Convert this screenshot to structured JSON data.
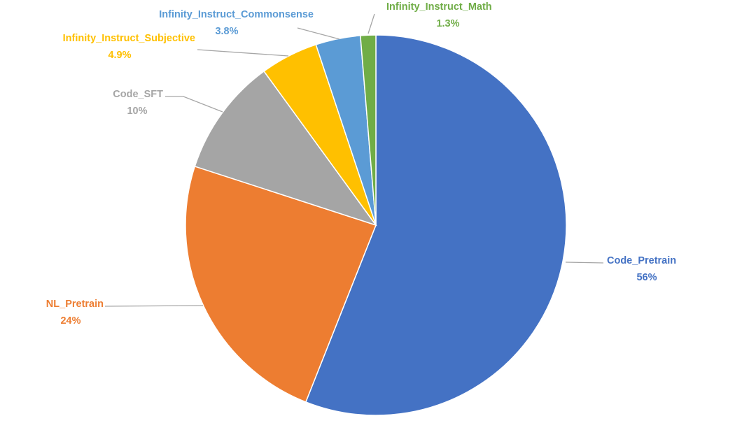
{
  "chart_data": {
    "type": "pie",
    "title": "",
    "start": "12 o'clock, clockwise",
    "legend": "none (data labels with leader lines)",
    "slices": [
      {
        "name": "Code_Pretrain",
        "value": 56,
        "label": "56%",
        "color": "#4472C4"
      },
      {
        "name": "NL_Pretrain",
        "value": 24,
        "label": "24%",
        "color": "#ED7D31"
      },
      {
        "name": "Code_SFT",
        "value": 10,
        "label": "10%",
        "color": "#A5A5A5"
      },
      {
        "name": "Infinity_Instruct_Subjective",
        "value": 4.9,
        "label": "4.9%",
        "color": "#FFC000"
      },
      {
        "name": "Infinity_Instruct_Commonsense",
        "value": 3.8,
        "label": "3.8%",
        "color": "#5B9BD5"
      },
      {
        "name": "Infinity_Instruct_Math",
        "value": 1.3,
        "label": "1.3%",
        "color": "#70AD47"
      }
    ]
  }
}
